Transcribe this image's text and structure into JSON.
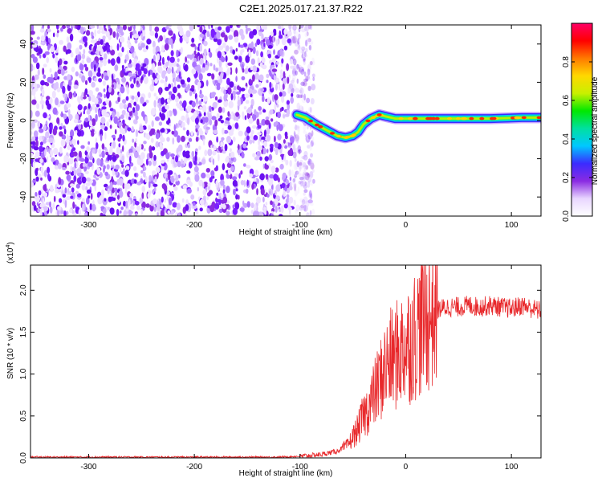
{
  "figure": {
    "title": "C2E1.2025.017.21.37.R22"
  },
  "chart_data": [
    {
      "type": "heatmap",
      "title": "C2E1.2025.017.21.37.R22",
      "xlabel": "Height of straight line (km)",
      "ylabel": "Frequency (Hz)",
      "xlim": [
        -355,
        128
      ],
      "ylim": [
        -50,
        50
      ],
      "xticks": [
        -300,
        -200,
        -100,
        0,
        100
      ],
      "yticks": [
        -40,
        -20,
        0,
        20,
        40
      ],
      "xtick_labels": [
        "-300",
        "-200",
        "-100",
        "0",
        "100"
      ],
      "ytick_labels": [
        "-40",
        "-20",
        "0",
        "20",
        "40"
      ],
      "colorbar": {
        "label": "Normalized spectral amplitude",
        "range": [
          0,
          1
        ],
        "ticks": [
          0.0,
          0.2,
          0.4,
          0.6,
          0.8
        ],
        "tick_labels": [
          "0.0",
          "0.2",
          "0.4",
          "0.6",
          "0.8"
        ],
        "colors": [
          "#ffffff",
          "#e8d6ff",
          "#8a2be2",
          "#3b2bff",
          "#00c8ff",
          "#00e0a0",
          "#00e800",
          "#c8f000",
          "#ffd800",
          "#ff7a00",
          "#ff0000",
          "#ff0066"
        ]
      },
      "noise_region_x": [
        -355,
        -96
      ],
      "ridge": {
        "name": "",
        "x": [
          -103,
          -95,
          -85,
          -75,
          -65,
          -57,
          -50,
          -45,
          -40,
          -33,
          -25,
          -18,
          -10,
          0,
          20,
          50,
          80,
          110,
          128
        ],
        "y": [
          3,
          1.5,
          -2,
          -5,
          -8,
          -9,
          -8,
          -6,
          -2,
          1,
          3,
          2,
          1,
          1,
          1,
          1,
          1,
          1.5,
          1.5
        ]
      },
      "grid": false
    },
    {
      "type": "line",
      "xlabel": "Height of straight line (km)",
      "ylabel": "SNR (10 * v/v)",
      "y_multiplier_label": "(x10",
      "y_multiplier_exp": "4",
      "xlim": [
        -355,
        128
      ],
      "ylim": [
        0,
        2.3
      ],
      "xticks": [
        -300,
        -200,
        -100,
        0,
        100
      ],
      "yticks": [
        0.0,
        0.5,
        1.0,
        1.5,
        2.0
      ],
      "xtick_labels": [
        "-300",
        "-200",
        "-100",
        "0",
        "100"
      ],
      "ytick_labels": [
        "0.0",
        "0.5",
        "1.0",
        "1.5",
        "2.0"
      ],
      "color": "#e8282b",
      "series": [
        {
          "name": "",
          "x": [
            -355,
            -300,
            -200,
            -120,
            -100,
            -80,
            -65,
            -55,
            -50,
            -45,
            -40,
            -35,
            -30,
            -25,
            -20,
            -15,
            -10,
            -5,
            0,
            5,
            10,
            15,
            20,
            25,
            30,
            40,
            50,
            60,
            70,
            80,
            90,
            100,
            110,
            120,
            128
          ],
          "y": [
            0.01,
            0.01,
            0.01,
            0.01,
            0.02,
            0.04,
            0.08,
            0.15,
            0.25,
            0.35,
            0.5,
            0.6,
            0.75,
            0.9,
            1.05,
            1.15,
            1.2,
            1.28,
            1.35,
            1.4,
            1.5,
            1.6,
            1.68,
            1.73,
            1.77,
            1.8,
            1.8,
            1.82,
            1.8,
            1.82,
            1.8,
            1.78,
            1.82,
            1.78,
            1.75
          ]
        }
      ],
      "grid": false
    }
  ]
}
